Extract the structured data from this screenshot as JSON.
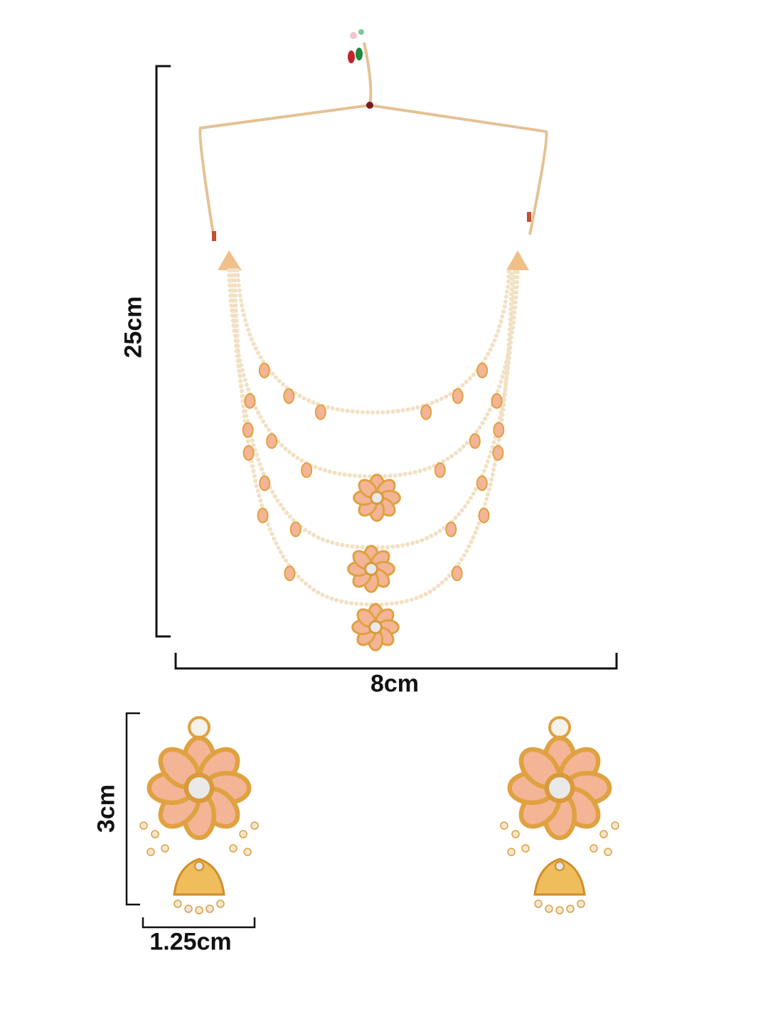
{
  "dimensions": {
    "necklace_height": "25cm",
    "necklace_width": "8cm",
    "earring_height": "3cm",
    "earring_width": "1.25cm"
  },
  "colors": {
    "background": "#ffffff",
    "dimension_line": "#111111",
    "gold": "#e3a64a",
    "pearl": "#f4e6cf",
    "peach_stone": "#f2b595",
    "cord": "#e8c99a"
  }
}
